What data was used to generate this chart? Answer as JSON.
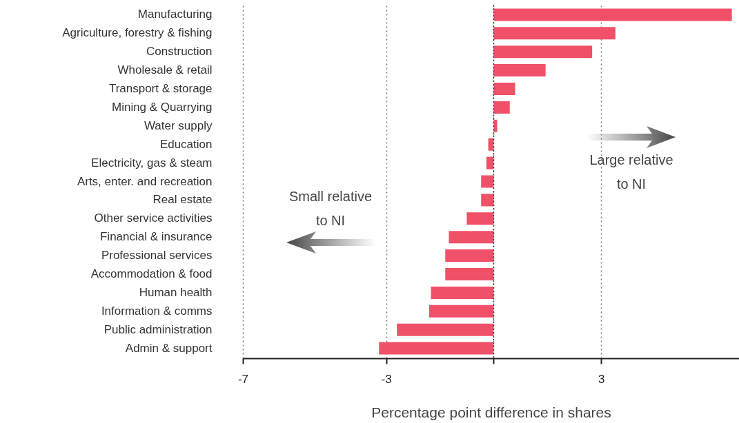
{
  "chart_data": {
    "type": "bar",
    "orientation": "horizontal",
    "xlabel": "Percentage point difference in shares",
    "categories": [
      "Manufacturing",
      "Agriculture, forestry & fishing",
      "Construction",
      "Wholesale & retail",
      "Transport & storage",
      "Mining & Quarrying",
      "Water supply",
      "Education",
      "Electricity, gas & steam",
      "Arts, enter. and recreation",
      "Real estate",
      "Other service activities",
      "Financial & insurance",
      "Professional services",
      "Accommodation & food",
      "Human health",
      "Information & comms",
      "Public administration",
      "Admin & support"
    ],
    "series": [
      {
        "color": "#f05068",
        "values": [
          6.65,
          3.4,
          2.75,
          1.45,
          0.6,
          0.45,
          0.1,
          -0.15,
          -0.2,
          -0.35,
          -0.35,
          -0.75,
          -1.25,
          -1.35,
          -1.35,
          -1.75,
          -1.8,
          -2.7,
          -3.2
        ]
      }
    ],
    "xlim": [
      -7,
      6.85
    ],
    "xticks": [
      -7,
      -3,
      {
        "value": 0,
        "label": null
      },
      3
    ],
    "grid": "x",
    "ref_lines": [
      {
        "axis": "x",
        "value": 0,
        "line_style": "dotted",
        "color": "#444444"
      }
    ],
    "annotations": [
      "Large relative to NI",
      "Small relative to NI"
    ]
  }
}
